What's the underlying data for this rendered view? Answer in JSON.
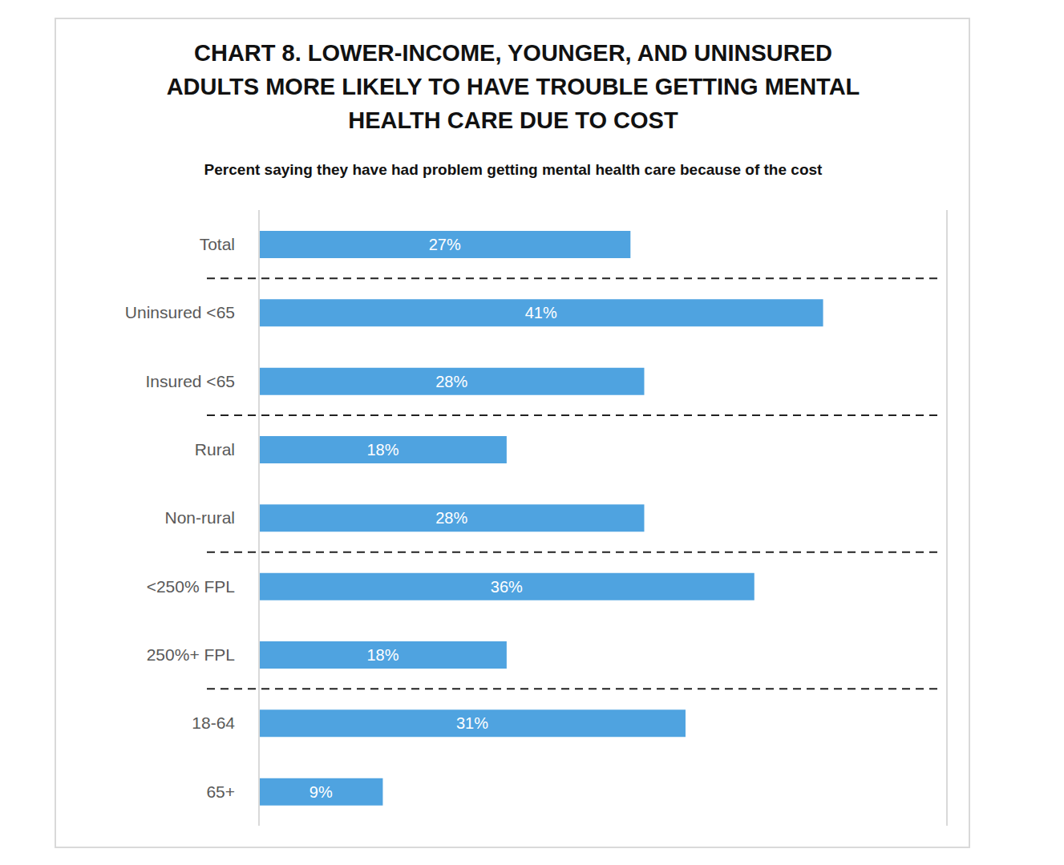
{
  "chart_data": {
    "type": "bar",
    "title": "CHART 8. LOWER-INCOME, YOUNGER, AND UNINSURED\nADULTS MORE LIKELY TO HAVE TROUBLE GETTING MENTAL\nHEALTH CARE DUE TO COST",
    "subtitle": "Percent saying they have had problem getting mental health care because of the cost",
    "categories": [
      "Total",
      "Uninsured <65",
      "Insured <65",
      "Rural",
      "Non-rural",
      "<250% FPL",
      "250%+ FPL",
      "18-64",
      "65+"
    ],
    "values": [
      27,
      41,
      28,
      18,
      28,
      36,
      18,
      31,
      9
    ],
    "value_labels": [
      "27%",
      "41%",
      "28%",
      "18%",
      "28%",
      "36%",
      "18%",
      "31%",
      "9%"
    ],
    "color": "#4fa3e0",
    "orientation": "horizontal",
    "xlim": [
      0,
      50
    ],
    "xticks": [
      0,
      10,
      20,
      30,
      40,
      50
    ],
    "grid": true,
    "data_labels": true,
    "tick_labels": "y"
  }
}
